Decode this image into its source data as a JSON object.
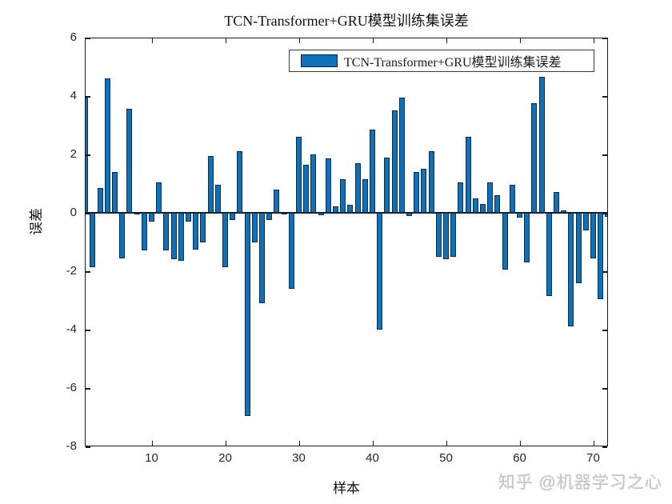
{
  "title": "TCN-Transformer+GRU模型训练集误差",
  "legend": {
    "label": "TCN-Transformer+GRU模型训练集误差",
    "swatch_color": "#0f72b9"
  },
  "watermark": "知乎 @机器学习之心",
  "colors": {
    "bar_fill": "#0f72b9",
    "bar_edge": "#0a2c49",
    "axis": "#1a1a1a",
    "tick_label": "#262626"
  },
  "chart_data": {
    "type": "bar",
    "title": "TCN-Transformer+GRU模型训练集误差",
    "xlabel": "样本",
    "ylabel": "误差",
    "legend_entries": [
      "TCN-Transformer+GRU模型训练集误差"
    ],
    "legend_position": "upper right",
    "grid": false,
    "x_start": 1,
    "ylim": [
      -8,
      6
    ],
    "yticks": [
      6,
      4,
      2,
      0,
      -2,
      -4,
      -6,
      -8
    ],
    "xticks": [
      10,
      20,
      30,
      40,
      50,
      60,
      70
    ],
    "values": [
      3.95,
      -1.85,
      0.85,
      4.6,
      1.4,
      -1.55,
      3.55,
      -0.05,
      -1.3,
      -0.3,
      1.05,
      -1.3,
      -1.6,
      -1.65,
      -0.3,
      -1.25,
      -1.0,
      1.95,
      0.95,
      -1.85,
      -0.25,
      2.1,
      -6.95,
      -1.0,
      -3.1,
      -0.25,
      0.8,
      -0.05,
      -2.6,
      2.6,
      1.65,
      2.0,
      -0.08,
      1.85,
      0.22,
      1.15,
      0.27,
      1.7,
      1.15,
      2.85,
      -4.0,
      1.9,
      3.5,
      3.95,
      -0.1,
      1.4,
      1.5,
      2.1,
      -1.5,
      -1.6,
      -1.5,
      1.05,
      2.6,
      0.48,
      0.3,
      1.05,
      0.6,
      -1.95,
      0.95,
      -0.17,
      -1.7,
      3.75,
      4.65,
      -2.85,
      0.72,
      0.08,
      -3.9,
      -2.4,
      -0.6,
      -1.55,
      -2.95,
      -0.15
    ]
  }
}
